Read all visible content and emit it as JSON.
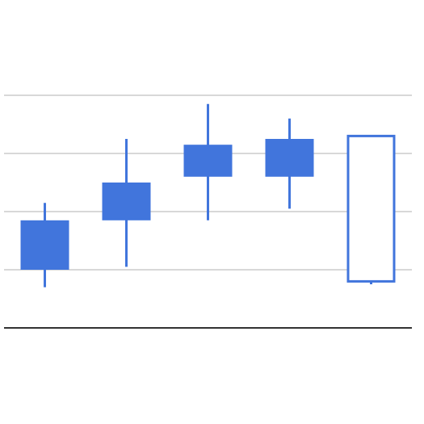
{
  "chart_data": {
    "type": "candlestick",
    "title": "",
    "xlabel": "",
    "ylabel": "",
    "ylim": [
      0,
      5
    ],
    "gridlines": [
      1,
      2,
      3,
      4
    ],
    "grid": true,
    "legend": "none",
    "x_tick_labels_shown": false,
    "y_tick_labels_shown": false,
    "candles": [
      {
        "open": 1.0,
        "high": 2.15,
        "low": 0.7,
        "close": 1.85
      },
      {
        "open": 1.85,
        "high": 3.25,
        "low": 1.05,
        "close": 2.5
      },
      {
        "open": 2.6,
        "high": 3.85,
        "low": 1.85,
        "close": 3.15
      },
      {
        "open": 2.6,
        "high": 3.6,
        "low": 2.05,
        "close": 3.25
      },
      {
        "open": 3.3,
        "high": 3.3,
        "low": 0.75,
        "close": 0.8
      }
    ],
    "colors": {
      "candle": "#4175dc",
      "gridline": "#cccccc",
      "baseline": "#333333",
      "hollow_fill": "#ffffff"
    }
  }
}
